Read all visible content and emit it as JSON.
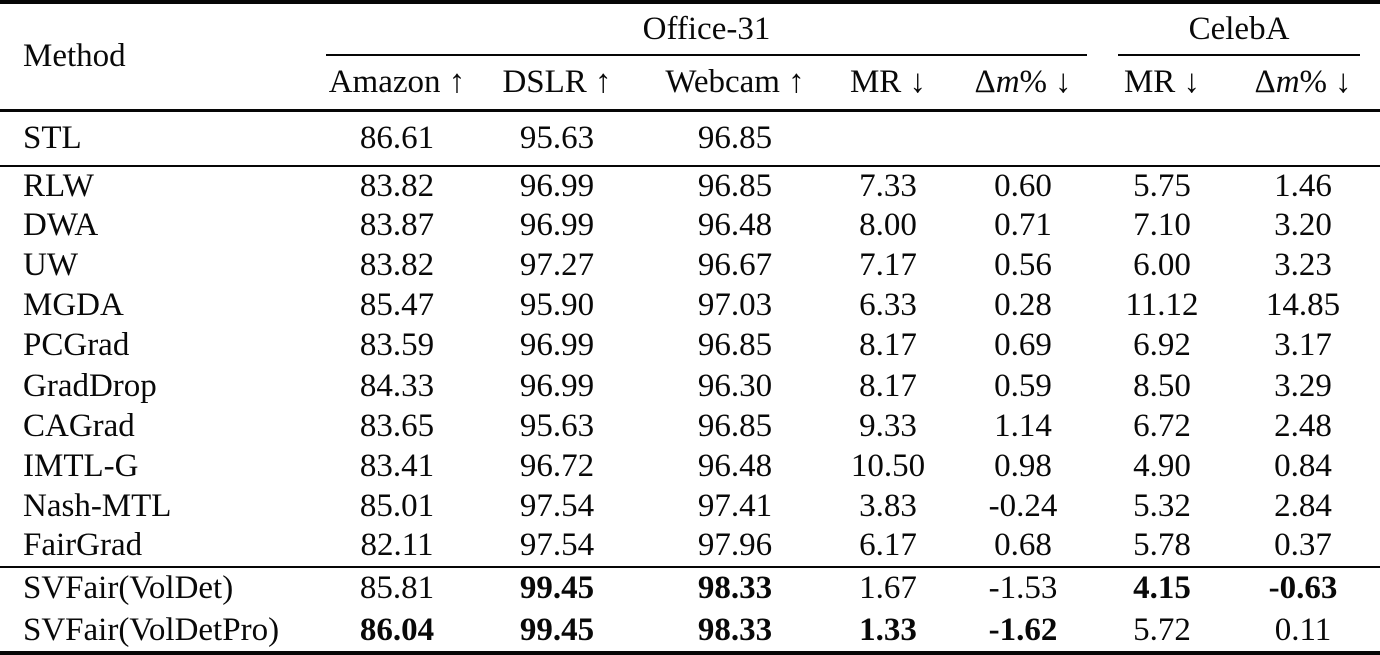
{
  "table": {
    "method_header": "Method",
    "groups": {
      "office": {
        "label": "Office-31"
      },
      "celeba": {
        "label": "CelebA"
      }
    },
    "columns": [
      {
        "label": "Amazon ↑"
      },
      {
        "label": "DSLR ↑"
      },
      {
        "label": "Webcam ↑"
      },
      {
        "label": "MR ↓"
      },
      {
        "delta": "Δ",
        "var": "m",
        "pct": "%",
        "arrow": "↓"
      },
      {
        "label": "MR ↓"
      },
      {
        "delta": "Δ",
        "var": "m",
        "pct": "%",
        "arrow": "↓"
      }
    ],
    "sections": [
      {
        "name": "baseline",
        "rows": [
          {
            "method": "STL",
            "values": [
              "86.61",
              "95.63",
              "96.85",
              "",
              "",
              "",
              ""
            ],
            "bold": []
          }
        ]
      },
      {
        "name": "mtl-methods",
        "rows": [
          {
            "method": "RLW",
            "values": [
              "83.82",
              "96.99",
              "96.85",
              "7.33",
              "0.60",
              "5.75",
              "1.46"
            ],
            "bold": []
          },
          {
            "method": "DWA",
            "values": [
              "83.87",
              "96.99",
              "96.48",
              "8.00",
              "0.71",
              "7.10",
              "3.20"
            ],
            "bold": []
          },
          {
            "method": "UW",
            "values": [
              "83.82",
              "97.27",
              "96.67",
              "7.17",
              "0.56",
              "6.00",
              "3.23"
            ],
            "bold": []
          },
          {
            "method": "MGDA",
            "values": [
              "85.47",
              "95.90",
              "97.03",
              "6.33",
              "0.28",
              "11.12",
              "14.85"
            ],
            "bold": []
          },
          {
            "method": "PCGrad",
            "values": [
              "83.59",
              "96.99",
              "96.85",
              "8.17",
              "0.69",
              "6.92",
              "3.17"
            ],
            "bold": []
          },
          {
            "method": "GradDrop",
            "values": [
              "84.33",
              "96.99",
              "96.30",
              "8.17",
              "0.59",
              "8.50",
              "3.29"
            ],
            "bold": []
          },
          {
            "method": "CAGrad",
            "values": [
              "83.65",
              "95.63",
              "96.85",
              "9.33",
              "1.14",
              "6.72",
              "2.48"
            ],
            "bold": []
          },
          {
            "method": "IMTL-G",
            "values": [
              "83.41",
              "96.72",
              "96.48",
              "10.50",
              "0.98",
              "4.90",
              "0.84"
            ],
            "bold": []
          },
          {
            "method": "Nash-MTL",
            "values": [
              "85.01",
              "97.54",
              "97.41",
              "3.83",
              "-0.24",
              "5.32",
              "2.84"
            ],
            "bold": []
          },
          {
            "method": "FairGrad",
            "values": [
              "82.11",
              "97.54",
              "97.96",
              "6.17",
              "0.68",
              "5.78",
              "0.37"
            ],
            "bold": []
          }
        ]
      },
      {
        "name": "ours",
        "rows": [
          {
            "method": "SVFair(VolDet)",
            "values": [
              "85.81",
              "99.45",
              "98.33",
              "1.67",
              "-1.53",
              "4.15",
              "-0.63"
            ],
            "bold": [
              1,
              2,
              5,
              6
            ]
          },
          {
            "method": "SVFair(VolDetPro)",
            "values": [
              "86.04",
              "99.45",
              "98.33",
              "1.33",
              "-1.62",
              "5.72",
              "0.11"
            ],
            "bold": [
              0,
              1,
              2,
              3,
              4
            ]
          }
        ]
      }
    ]
  }
}
